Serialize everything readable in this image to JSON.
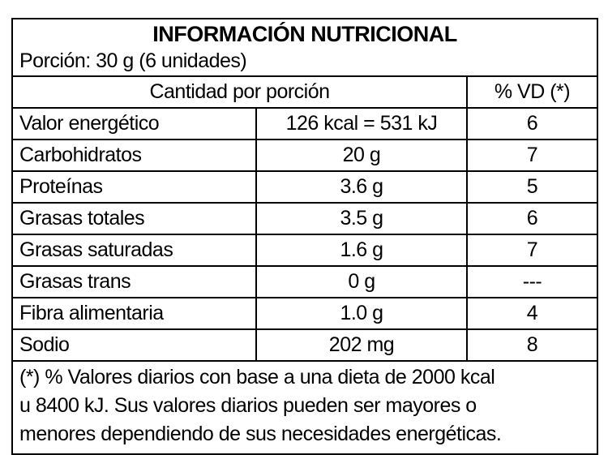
{
  "table": {
    "title": "INFORMACIÓN NUTRICIONAL",
    "serving": "Porción: 30 g (6 unidades)",
    "header": {
      "amount_label": "Cantidad por porción",
      "dv_label": "% VD (*)"
    },
    "rows": [
      {
        "name": "Valor energético",
        "amount": "126 kcal = 531 kJ",
        "dv": "6",
        "indent": false
      },
      {
        "name": "Carbohidratos",
        "amount": "20 g",
        "dv": "7",
        "indent": false
      },
      {
        "name": "Proteínas",
        "amount": "3.6 g",
        "dv": "5",
        "indent": false
      },
      {
        "name": "Grasas totales",
        "amount": "3.5 g",
        "dv": "6",
        "indent": false
      },
      {
        "name": "Grasas saturadas",
        "amount": "1.6 g",
        "dv": "7",
        "indent": true
      },
      {
        "name": "Grasas trans",
        "amount": "0 g",
        "dv": "---",
        "indent": true
      },
      {
        "name": "Fibra alimentaria",
        "amount": "1.0 g",
        "dv": "4",
        "indent": false
      },
      {
        "name": "Sodio",
        "amount": "202 mg",
        "dv": "8",
        "indent": false
      }
    ],
    "footnote_lines": [
      "(*) % Valores diarios con base a una dieta de 2000 kcal",
      "u 8400 kJ. Sus valores diarios pueden ser mayores o",
      "menores dependiendo de sus necesidades energéticas."
    ],
    "colors": {
      "border": "#000000",
      "text": "#000000",
      "background": "#ffffff"
    }
  }
}
